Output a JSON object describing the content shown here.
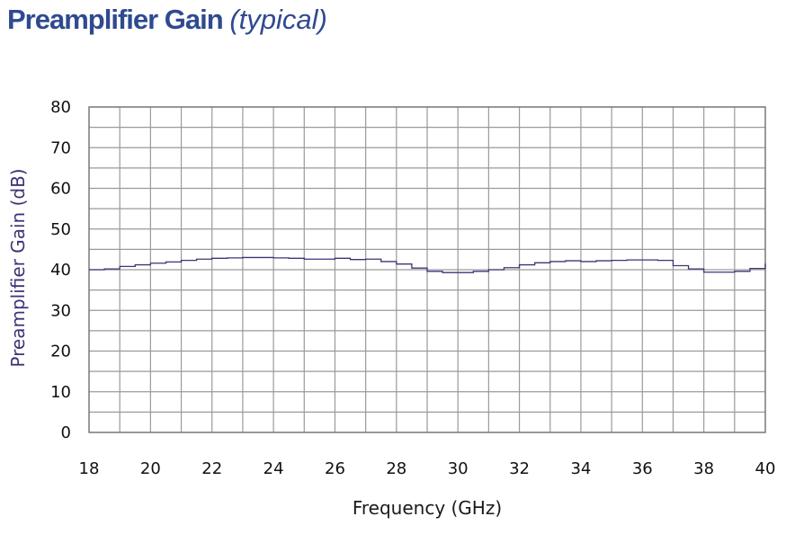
{
  "title": {
    "main": "Preamplifier Gain",
    "sub": "(typical)"
  },
  "colors": {
    "title": "#2f4a8f",
    "grid": "#9a9a9a",
    "series": "#3b3577",
    "ylabel": "#3b3577"
  },
  "chart_data": {
    "type": "line",
    "xlabel": "Frequency (GHz)",
    "ylabel": "Preamplifier Gain (dB)",
    "xlim": [
      18,
      40
    ],
    "ylim": [
      0,
      80
    ],
    "x_ticks": [
      "18",
      "20",
      "22",
      "24",
      "26",
      "28",
      "30",
      "32",
      "34",
      "36",
      "38",
      "40"
    ],
    "y_ticks": [
      "0",
      "10",
      "20",
      "30",
      "40",
      "50",
      "60",
      "70",
      "80"
    ],
    "grid": true,
    "line_shape": "step",
    "series": [
      {
        "x": [
          18,
          18.5,
          19,
          19.5,
          20,
          20.5,
          21,
          21.5,
          22,
          22.5,
          23,
          23.5,
          24,
          24.5,
          25,
          25.5,
          26,
          26.5,
          27,
          27.5,
          28,
          28.5,
          29,
          29.5,
          30,
          30.5,
          31,
          31.5,
          32,
          32.5,
          33,
          33.5,
          34,
          34.5,
          35,
          35.5,
          36,
          36.5,
          37,
          37.5,
          38,
          38.5,
          39,
          39.5,
          40
        ],
        "y": [
          40.0,
          40.2,
          40.8,
          41.2,
          41.6,
          41.9,
          42.3,
          42.6,
          42.8,
          42.9,
          43.0,
          43.0,
          42.9,
          42.8,
          42.6,
          42.6,
          42.8,
          42.5,
          42.6,
          42.0,
          41.4,
          40.4,
          39.6,
          39.3,
          39.3,
          39.6,
          40.0,
          40.5,
          41.2,
          41.7,
          42.0,
          42.2,
          42.0,
          42.2,
          42.3,
          42.4,
          42.4,
          42.3,
          41.0,
          40.2,
          39.4,
          39.4,
          39.6,
          40.3,
          41.5
        ]
      }
    ]
  }
}
